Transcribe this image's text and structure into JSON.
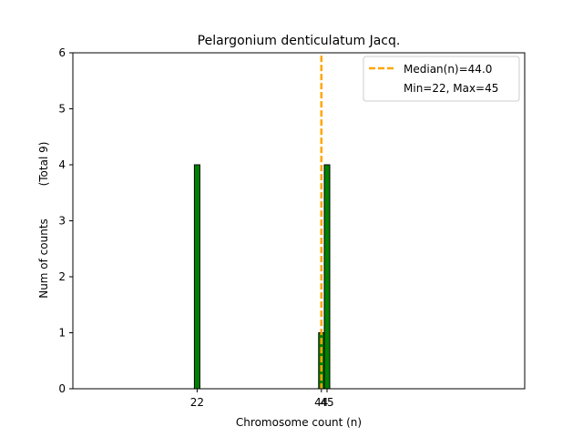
{
  "chart_data": {
    "type": "bar",
    "title": "Pelargonium denticulatum Jacq.",
    "xlabel": "Chromosome count (n)",
    "ylabel": "Num of counts",
    "ylabel_extra": "(Total 9)",
    "xlim": [
      0,
      80
    ],
    "ylim": [
      0,
      6
    ],
    "yticks": [
      0,
      1,
      2,
      3,
      4,
      5,
      6
    ],
    "xticks": [
      22,
      44,
      45
    ],
    "bars": [
      {
        "x": 22,
        "count": 4
      },
      {
        "x": 44,
        "count": 1
      },
      {
        "x": 45,
        "count": 4
      }
    ],
    "median": 44.0,
    "legend": {
      "median_label": "Median(n)=44.0",
      "range_label": "Min=22, Max=45",
      "location": "upper right"
    },
    "colors": {
      "bar_fill": "#008000",
      "bar_edge": "#000000",
      "median_line": "#FFA500",
      "axes": "#000000"
    }
  }
}
